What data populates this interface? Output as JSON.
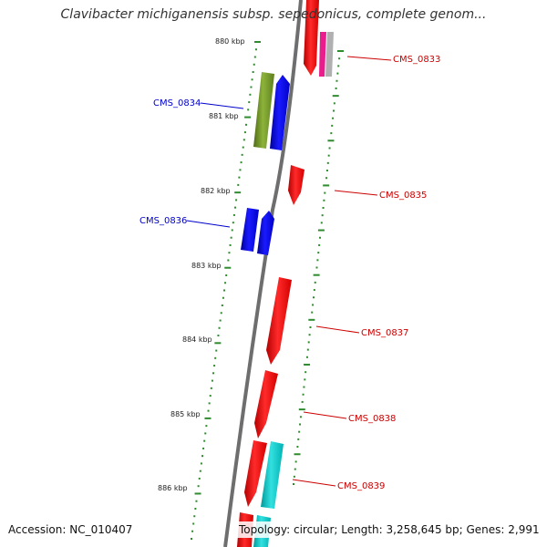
{
  "title": "Clavibacter michiganensis subsp. sepedonicus, complete genom...",
  "footer": {
    "accession": "Accession: NC_010407",
    "topology": "Topology: circular; Length: 3,258,645 bp; Genes: 2,991"
  },
  "colors": {
    "backbone": "#7f7f7f",
    "tick": "#2e8b2e",
    "reverse_gene": "#ff0000",
    "forward_gene": "#0000ff",
    "olive_gene": "#6b8e23",
    "cyan_gene": "#00cccc",
    "pink_gene": "#e91e8c",
    "grey_gene": "#b0b0b0",
    "label_reverse": "#cc0000",
    "label_forward": "#0000cc"
  },
  "kbp_labels": [
    "880 kbp",
    "881 kbp",
    "882 kbp",
    "883 kbp",
    "884 kbp",
    "885 kbp",
    "886 kbp"
  ],
  "gene_labels": [
    "CMS_0833",
    "CMS_0834",
    "CMS_0835",
    "CMS_0836",
    "CMS_0837",
    "CMS_0838",
    "CMS_0839"
  ]
}
